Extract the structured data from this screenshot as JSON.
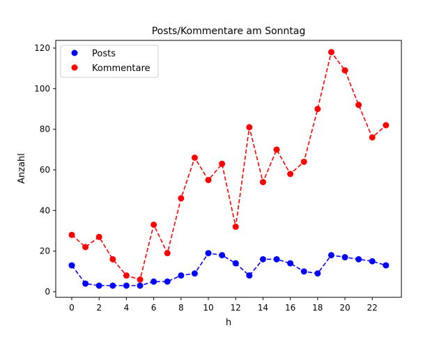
{
  "chart_data": {
    "type": "line",
    "title": "Posts/Kommentare am Sonntag",
    "xlabel": "h",
    "ylabel": "Anzahl",
    "x": [
      0,
      1,
      2,
      3,
      4,
      5,
      6,
      7,
      8,
      9,
      10,
      11,
      12,
      13,
      14,
      15,
      16,
      17,
      18,
      19,
      20,
      21,
      22,
      23
    ],
    "xticks": [
      0,
      2,
      4,
      6,
      8,
      10,
      12,
      14,
      16,
      18,
      20,
      22
    ],
    "yticks": [
      0,
      20,
      40,
      60,
      80,
      100,
      120
    ],
    "xlim": [
      -1.15,
      24.15
    ],
    "ylim": [
      -3,
      124
    ],
    "grid": false,
    "legend_position": "upper left",
    "series": [
      {
        "name": "Posts",
        "color": "#0000ff",
        "style": "dashed-with-circle-markers",
        "values": [
          13,
          4,
          3,
          3,
          3,
          3,
          5,
          5,
          8,
          9,
          19,
          18,
          14,
          8,
          16,
          16,
          14,
          10,
          9,
          18,
          17,
          16,
          15,
          13
        ]
      },
      {
        "name": "Kommentare",
        "color": "#ff0000",
        "style": "dashed-with-circle-markers",
        "values": [
          28,
          22,
          27,
          16,
          8,
          6,
          33,
          19,
          46,
          66,
          55,
          63,
          32,
          81,
          54,
          70,
          58,
          64,
          90,
          118,
          109,
          92,
          76,
          82
        ]
      }
    ]
  }
}
